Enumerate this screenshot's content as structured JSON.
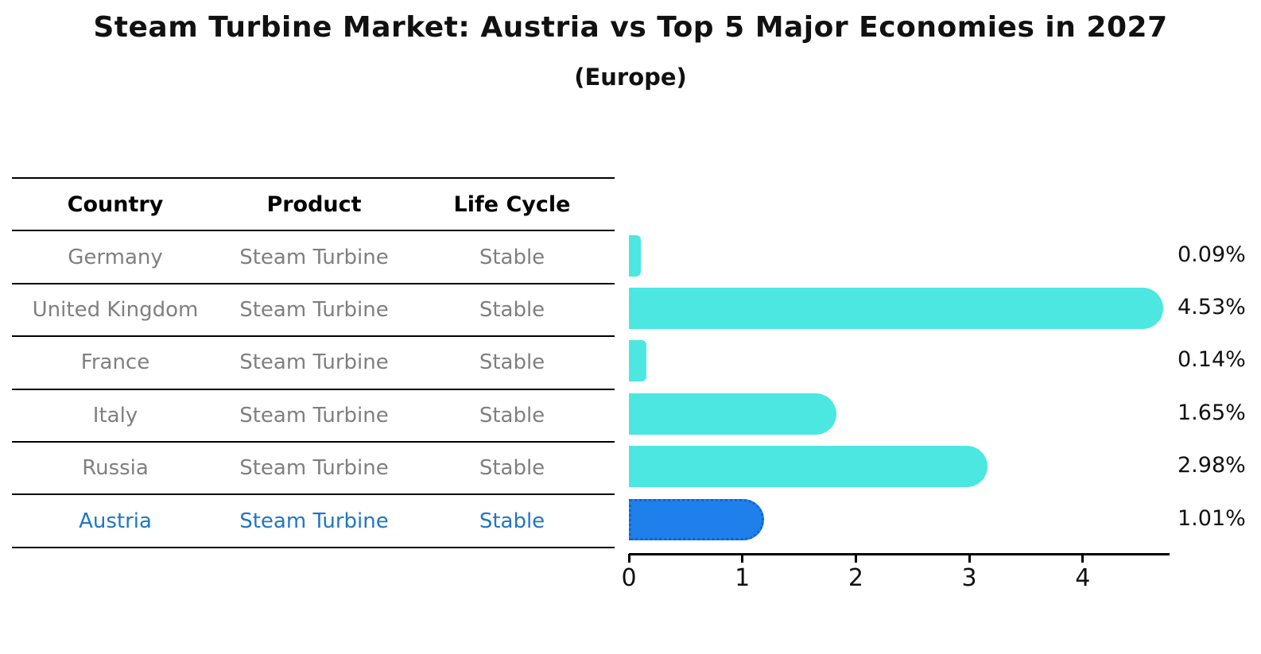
{
  "title": "Steam Turbine Market: Austria vs Top 5 Major Economies in 2027",
  "subtitle": "(Europe)",
  "table": {
    "headers": {
      "country": "Country",
      "product": "Product",
      "life_cycle": "Life Cycle"
    },
    "rows": [
      {
        "country": "Germany",
        "product": "Steam Turbine",
        "life_cycle": "Stable",
        "highlight": false
      },
      {
        "country": "United Kingdom",
        "product": "Steam Turbine",
        "life_cycle": "Stable",
        "highlight": false
      },
      {
        "country": "France",
        "product": "Steam Turbine",
        "life_cycle": "Stable",
        "highlight": false
      },
      {
        "country": "Italy",
        "product": "Steam Turbine",
        "life_cycle": "Stable",
        "highlight": false
      },
      {
        "country": "Russia",
        "product": "Steam Turbine",
        "life_cycle": "Stable",
        "highlight": true
      }
    ],
    "highlight_row": {
      "country": "Austria",
      "product": "Steam Turbine",
      "life_cycle": "Stable"
    }
  },
  "chart_data": {
    "type": "bar",
    "orientation": "horizontal",
    "title": "Steam Turbine Market: Austria vs Top 5 Major Economies in 2027 (Europe)",
    "categories": [
      "Germany",
      "United Kingdom",
      "France",
      "Italy",
      "Russia",
      "Austria"
    ],
    "values": [
      0.09,
      4.53,
      0.14,
      1.65,
      2.98,
      1.01
    ],
    "value_labels": [
      "0.09%",
      "4.53%",
      "0.14%",
      "1.65%",
      "2.98%",
      "1.01%"
    ],
    "x_tick_labels": [
      "0",
      "1",
      "2",
      "3",
      "4"
    ],
    "xlim": [
      0,
      4.76
    ],
    "grid": "off",
    "legend": "none",
    "bar_color": "#4BE7E0",
    "highlight_bar_color": "#1F80EC",
    "highlight_category": "Austria"
  },
  "colors": {
    "background": "#FFFFFF",
    "title_text": "#111111",
    "row_text": "#7F7F7F",
    "highlight_text": "#2176C4",
    "bar": "#4BE7E0",
    "highlight_bar": "#1F80EC",
    "axis": "#000000"
  }
}
